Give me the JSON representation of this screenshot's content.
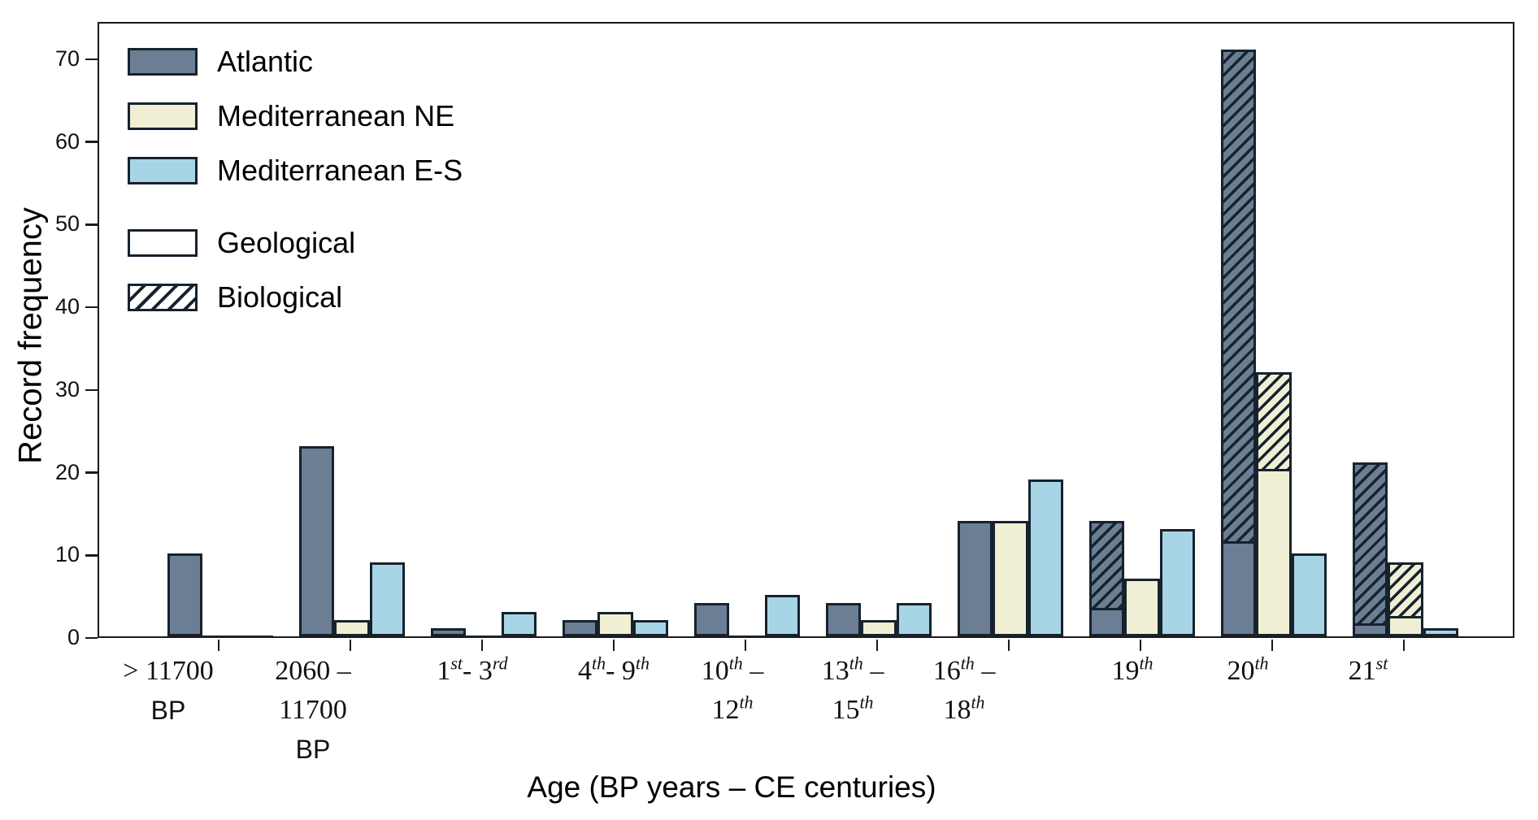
{
  "figure": {
    "ylabel": "Record frequency",
    "xlabel": "Age (BP years – CE centuries)"
  },
  "legend": {
    "series_entries": [
      "Atlantic",
      "Mediterranean NE",
      "Mediterranean E-S"
    ],
    "type_entries": [
      "Geological",
      "Biological"
    ]
  },
  "colors": {
    "atlantic": "#6b7e93",
    "med_ne": "#f0efd4",
    "med_es": "#a7d5e5",
    "edge": "#16222e",
    "axis": "#1a1a1a",
    "background": "#ffffff"
  },
  "chart_data": {
    "type": "bar",
    "title": "",
    "xlabel": "Age (BP years – CE centuries)",
    "ylabel": "Record frequency",
    "ylim": [
      0,
      74.5
    ],
    "yticks": [
      0,
      10,
      20,
      30,
      40,
      50,
      60,
      70
    ],
    "grid": false,
    "legend_position": "upper-left",
    "hatch_meaning": {
      "solid": "Geological",
      "hatched": "Biological"
    },
    "categories": [
      {
        "label": "> 11700\nBP",
        "dx": -62
      },
      {
        "label": "2060 –\n11700\nBP",
        "dx": -46
      },
      {
        "label": "1^{st}- 3^{rd}",
        "dx": -12
      },
      {
        "label": "4^{th}- 9^{th}",
        "dx": 0
      },
      {
        "label": "10^{th} –\n12^{th}",
        "dx": -16
      },
      {
        "label": "13^{th} –\n15^{th}",
        "dx": -30
      },
      {
        "label": "16^{th} –\n18^{th}",
        "dx": -55
      },
      {
        "label": "19^{th}",
        "dx": -10
      },
      {
        "label": "20^{th}",
        "dx": -30
      },
      {
        "label": "21^{st}",
        "dx": -44
      }
    ],
    "series": [
      {
        "name": "Atlantic",
        "color": "#6b7e93",
        "geological": [
          10,
          23,
          1,
          2,
          4,
          4,
          14,
          3,
          11,
          1
        ],
        "biological": [
          0,
          0,
          0,
          0,
          0,
          0,
          0,
          11,
          60,
          20
        ],
        "totals": [
          10,
          23,
          1,
          2,
          4,
          4,
          14,
          14,
          71,
          21
        ]
      },
      {
        "name": "Mediterranean NE",
        "color": "#f0efd4",
        "geological": [
          0,
          2,
          0,
          3,
          0,
          2,
          14,
          7,
          20,
          2
        ],
        "biological": [
          0,
          0,
          0,
          0,
          0,
          0,
          0,
          0,
          12,
          7
        ],
        "totals": [
          0,
          2,
          0,
          3,
          0,
          2,
          14,
          7,
          32,
          9
        ]
      },
      {
        "name": "Mediterranean E-S",
        "color": "#a7d5e5",
        "geological": [
          0,
          9,
          3,
          2,
          5,
          4,
          19,
          13,
          10,
          1
        ],
        "biological": [
          0,
          0,
          0,
          0,
          0,
          0,
          0,
          0,
          0,
          0
        ],
        "totals": [
          0,
          9,
          3,
          2,
          5,
          4,
          19,
          13,
          10,
          1
        ]
      }
    ]
  }
}
